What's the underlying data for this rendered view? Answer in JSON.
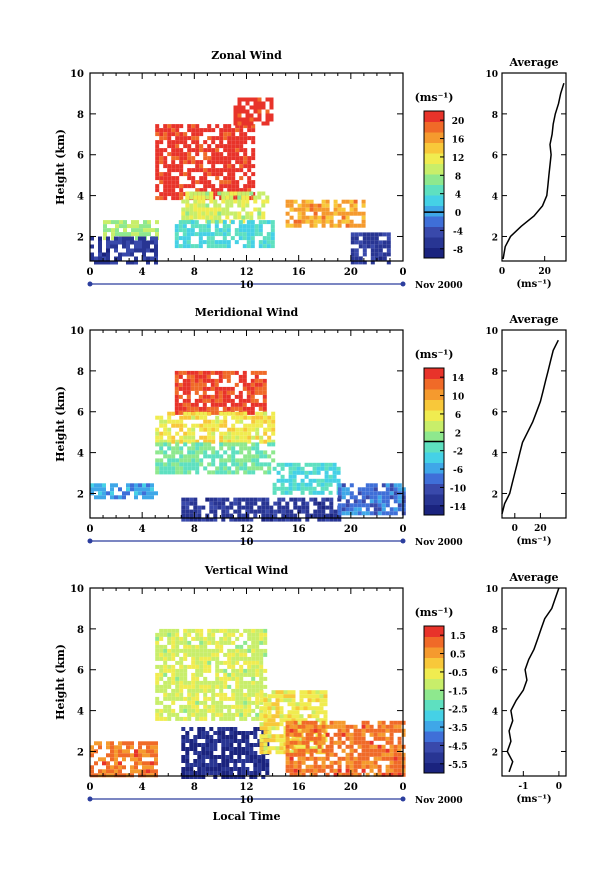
{
  "figure": {
    "date_label": "Nov 2000",
    "day_label": "10",
    "xlabel": "Local Time",
    "ylabel": "Height (km)",
    "unit_label": "(ms⁻¹)",
    "avg_title": "Average",
    "avg_xlabel": "(ms⁻¹)"
  },
  "palette": [
    "#1a237e",
    "#283593",
    "#3949ab",
    "#3f6fd8",
    "#3fa7e8",
    "#45d1e6",
    "#5ee0c0",
    "#8ee88e",
    "#c8ee6a",
    "#f0ec50",
    "#f8c83a",
    "#f59a2e",
    "#f06a28",
    "#e8332a"
  ],
  "chart_data": [
    {
      "type": "heatmap",
      "title": "Zonal Wind",
      "xlabel": "",
      "ylabel": "Height (km)",
      "xlim": [
        0,
        24
      ],
      "ylim": [
        0.8,
        10
      ],
      "x_ticks": [
        "0",
        "4",
        "8",
        "12",
        "16",
        "20",
        "0"
      ],
      "y_ticks": [
        "2",
        "4",
        "6",
        "8",
        "10"
      ],
      "colorbar": {
        "ticks": [
          "20",
          "16",
          "12",
          "8",
          "4",
          "0",
          "-4",
          "-8"
        ],
        "range": [
          -10,
          22
        ],
        "zero_line": 0
      },
      "regions": [
        {
          "x": [
            5.0,
            12.5
          ],
          "y": [
            3.8,
            7.5
          ],
          "value": 21
        },
        {
          "x": [
            7.0,
            13.5
          ],
          "y": [
            2.8,
            4.2
          ],
          "value": 10
        },
        {
          "x": [
            6.5,
            14.0
          ],
          "y": [
            1.5,
            2.8
          ],
          "value": 4
        },
        {
          "x": [
            1.0,
            5.0
          ],
          "y": [
            2.0,
            2.8
          ],
          "value": 8
        },
        {
          "x": [
            15.0,
            21.0
          ],
          "y": [
            2.5,
            3.8
          ],
          "value": 16
        },
        {
          "x": [
            0.0,
            5.0
          ],
          "y": [
            0.8,
            2.0
          ],
          "value": -6
        },
        {
          "x": [
            20.0,
            23.0
          ],
          "y": [
            0.8,
            2.2
          ],
          "value": -6
        },
        {
          "x": [
            11.0,
            14.0
          ],
          "y": [
            7.5,
            8.8
          ],
          "value": 21
        }
      ],
      "average": {
        "xlim": [
          0,
          30
        ],
        "x_ticks": [
          "0",
          "20"
        ],
        "height": [
          0.9,
          1.5,
          2.0,
          2.5,
          3.0,
          3.5,
          4.0,
          4.5,
          5.0,
          5.5,
          6.0,
          6.5,
          7.0,
          7.5,
          8.0,
          8.5,
          9.0,
          9.5
        ],
        "value": [
          0.5,
          1.5,
          4.0,
          9.0,
          15.0,
          19.0,
          21.0,
          21.5,
          22.0,
          22.5,
          23.0,
          22.5,
          23.5,
          24.0,
          25.0,
          26.5,
          27.5,
          29.0
        ]
      }
    },
    {
      "type": "heatmap",
      "title": "Meridional Wind",
      "xlabel": "",
      "ylabel": "Height (km)",
      "xlim": [
        0,
        24
      ],
      "ylim": [
        0.8,
        10
      ],
      "x_ticks": [
        "0",
        "4",
        "8",
        "12",
        "16",
        "20",
        "0"
      ],
      "y_ticks": [
        "2",
        "4",
        "6",
        "8",
        "10"
      ],
      "colorbar": {
        "ticks": [
          "14",
          "10",
          "6",
          "2",
          "-2",
          "-6",
          "-10",
          "-14"
        ],
        "range": [
          -16,
          16
        ],
        "zero_line": 0
      },
      "regions": [
        {
          "x": [
            6.5,
            13.5
          ],
          "y": [
            6.0,
            8.0
          ],
          "value": 14
        },
        {
          "x": [
            5.0,
            14.0
          ],
          "y": [
            4.5,
            6.0
          ],
          "value": 6
        },
        {
          "x": [
            5.0,
            14.0
          ],
          "y": [
            3.0,
            4.5
          ],
          "value": 0
        },
        {
          "x": [
            14.0,
            19.0
          ],
          "y": [
            2.0,
            3.5
          ],
          "value": -2
        },
        {
          "x": [
            0.0,
            5.0
          ],
          "y": [
            1.8,
            2.5
          ],
          "value": -6
        },
        {
          "x": [
            7.0,
            19.0
          ],
          "y": [
            0.8,
            1.8
          ],
          "value": -12
        },
        {
          "x": [
            19.0,
            24.0
          ],
          "y": [
            1.0,
            2.5
          ],
          "value": -8
        }
      ],
      "average": {
        "xlim": [
          -10,
          40
        ],
        "x_ticks": [
          "0",
          "20"
        ],
        "height": [
          1.0,
          1.5,
          2.0,
          2.5,
          3.0,
          3.5,
          4.0,
          4.5,
          5.0,
          5.5,
          6.0,
          6.5,
          7.0,
          7.5,
          8.0,
          8.5,
          9.0,
          9.5
        ],
        "value": [
          -10.0,
          -8.0,
          -4.0,
          -2.0,
          0.0,
          2.0,
          4.0,
          6.0,
          10.0,
          14.0,
          17.0,
          20.0,
          22.0,
          24.0,
          26.0,
          28.0,
          30.0,
          34.0
        ]
      }
    },
    {
      "type": "heatmap",
      "title": "Vertical Wind",
      "xlabel": "Local Time",
      "ylabel": "Height (km)",
      "xlim": [
        0,
        24
      ],
      "ylim": [
        0.8,
        10
      ],
      "x_ticks": [
        "0",
        "4",
        "8",
        "12",
        "16",
        "20",
        "0"
      ],
      "y_ticks": [
        "2",
        "4",
        "6",
        "8",
        "10"
      ],
      "colorbar": {
        "ticks": [
          "1.5",
          "0.5",
          "-0.5",
          "-1.5",
          "-2.5",
          "-3.5",
          "-4.5",
          "-5.5"
        ],
        "range": [
          -6,
          2
        ],
        "zero_line": null
      },
      "regions": [
        {
          "x": [
            0.0,
            5.0
          ],
          "y": [
            0.8,
            2.5
          ],
          "value": 1.0
        },
        {
          "x": [
            5.0,
            13.5
          ],
          "y": [
            3.5,
            8.0
          ],
          "value": -1.0
        },
        {
          "x": [
            7.0,
            13.5
          ],
          "y": [
            0.8,
            3.2
          ],
          "value": -5.5
        },
        {
          "x": [
            13.0,
            18.0
          ],
          "y": [
            2.0,
            5.0
          ],
          "value": -0.5
        },
        {
          "x": [
            15.0,
            24.0
          ],
          "y": [
            0.8,
            3.5
          ],
          "value": 1.0
        }
      ],
      "average": {
        "xlim": [
          -1.6,
          0.2
        ],
        "x_ticks": [
          "-1",
          "0"
        ],
        "height": [
          1.0,
          1.5,
          2.0,
          2.5,
          3.0,
          3.5,
          4.0,
          4.5,
          5.0,
          5.5,
          6.0,
          6.5,
          7.0,
          7.5,
          8.0,
          8.5,
          9.0,
          9.5,
          10.0
        ],
        "value": [
          -1.4,
          -1.3,
          -1.45,
          -1.35,
          -1.4,
          -1.3,
          -1.35,
          -1.2,
          -1.0,
          -0.9,
          -0.95,
          -0.85,
          -0.7,
          -0.6,
          -0.5,
          -0.4,
          -0.2,
          -0.1,
          0.0
        ]
      }
    }
  ]
}
